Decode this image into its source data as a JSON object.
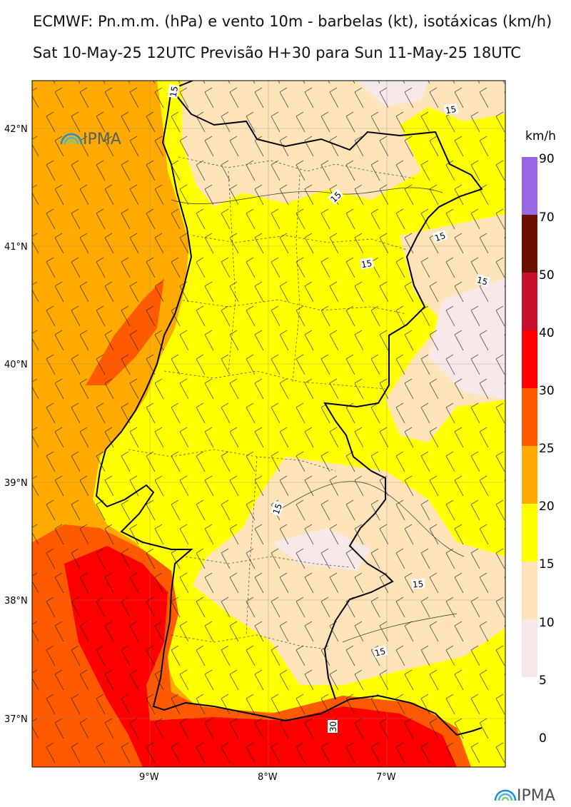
{
  "title": {
    "line1": "ECMWF: Pn.m.m. (hPa) e vento 10m - barbelas (kt), isotáxicas (km/h)",
    "line2": "Sat 10-May-25 12UTC Previsão H+30 para Sun 11-May-25 18UTC"
  },
  "latitude_labels": [
    "42°N",
    "41°N",
    "40°N",
    "39°N",
    "38°N",
    "37°N"
  ],
  "longitude_labels": [
    "9°W",
    "8°W",
    "7°W"
  ],
  "colorbar": {
    "unit": "km/h",
    "levels": [
      "90",
      "70",
      "50",
      "40",
      "30",
      "25",
      "20",
      "15",
      "10",
      "5",
      "0"
    ],
    "colors": [
      "#9966e6",
      "#6b0f00",
      "#c8102e",
      "#ff0000",
      "#ff5a00",
      "#ffaa00",
      "#ffff00",
      "#fde3b8",
      "#f5e8e6"
    ]
  },
  "isotach_labels": [
    "15",
    "15",
    "15",
    "15",
    "15",
    "15",
    "15",
    "15",
    "15",
    "30"
  ],
  "logo": {
    "text": "IPMA"
  },
  "footer_logo": {
    "text": "IPMA"
  },
  "fill_colors": {
    "orange": "#ffaa00",
    "dark_orange": "#ff5a00",
    "red": "#ff0000",
    "yellow": "#ffff00",
    "peach": "#fde3b8",
    "pale": "#f5e8e6"
  }
}
